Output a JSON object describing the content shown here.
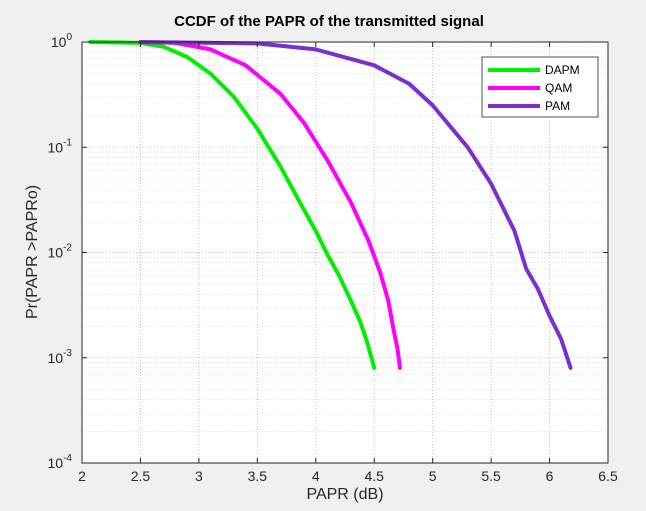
{
  "chart_data": {
    "type": "line",
    "title": "CCDF of the PAPR of the transmitted signal",
    "xlabel": "PAPR (dB)",
    "ylabel": "Pr(PAPR >PAPRo)",
    "xlim": [
      2,
      6.5
    ],
    "ylim": [
      0.0001,
      1
    ],
    "yscale": "log",
    "grid": true,
    "minor_grid": true,
    "legend_position": "top-right",
    "x_ticks": [
      "2",
      "2.5",
      "3",
      "3.5",
      "4",
      "4.5",
      "5",
      "5.5",
      "6",
      "6.5"
    ],
    "y_ticks": [
      {
        "base": "10",
        "exp": "0",
        "value": 1
      },
      {
        "base": "10",
        "exp": "-1",
        "value": 0.1
      },
      {
        "base": "10",
        "exp": "-2",
        "value": 0.01
      },
      {
        "base": "10",
        "exp": "-3",
        "value": 0.001
      },
      {
        "base": "10",
        "exp": "-4",
        "value": 0.0001
      }
    ],
    "series": [
      {
        "name": "DAPM",
        "color": "#00ee00",
        "x": [
          2.07,
          2.5,
          2.7,
          2.9,
          3.1,
          3.3,
          3.5,
          3.7,
          3.85,
          4.0,
          4.1,
          4.2,
          4.3,
          4.38,
          4.44,
          4.5
        ],
        "y": [
          1.0,
          0.98,
          0.9,
          0.72,
          0.5,
          0.3,
          0.15,
          0.065,
          0.032,
          0.016,
          0.0095,
          0.006,
          0.0035,
          0.0022,
          0.0014,
          0.0008
        ]
      },
      {
        "name": "QAM",
        "color": "#ff00ff",
        "x": [
          2.5,
          2.8,
          3.1,
          3.4,
          3.7,
          3.9,
          4.1,
          4.3,
          4.45,
          4.55,
          4.62,
          4.66,
          4.7,
          4.72
        ],
        "y": [
          1.0,
          0.98,
          0.85,
          0.6,
          0.32,
          0.17,
          0.075,
          0.03,
          0.013,
          0.0065,
          0.0035,
          0.002,
          0.0012,
          0.0008
        ]
      },
      {
        "name": "PAM",
        "color": "#7b2fcf",
        "x": [
          2.5,
          3.5,
          4.0,
          4.5,
          4.8,
          5.0,
          5.3,
          5.5,
          5.7,
          5.8,
          5.9,
          6.0,
          6.1,
          6.18
        ],
        "y": [
          1.0,
          0.97,
          0.85,
          0.6,
          0.4,
          0.25,
          0.1,
          0.045,
          0.016,
          0.007,
          0.0045,
          0.0025,
          0.0015,
          0.0008
        ]
      }
    ]
  }
}
